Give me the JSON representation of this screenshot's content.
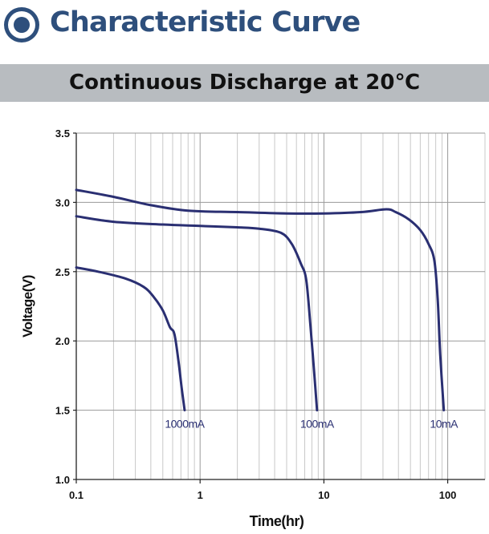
{
  "header": {
    "title": "Characteristic Curve",
    "subtitle": "Continuous Discharge at 20℃",
    "icon": "target-icon",
    "accent_color": "#2e4f7c",
    "bar_color": "#b8bcc0"
  },
  "chart_data": {
    "type": "line",
    "title": "Continuous Discharge at 20℃",
    "xlabel": "Time(hr)",
    "ylabel": "Voltage(V)",
    "x_scale": "log",
    "xlim": [
      0.1,
      200
    ],
    "ylim": [
      1.0,
      3.5
    ],
    "x_ticks": [
      0.1,
      1,
      10,
      100
    ],
    "x_tick_labels": [
      "0.1",
      "1",
      "10",
      "100"
    ],
    "y_ticks": [
      1.0,
      1.5,
      2.0,
      2.5,
      3.0,
      3.5
    ],
    "y_tick_labels": [
      "1.0",
      "1.5",
      "2.0",
      "2.5",
      "3.0",
      "3.5"
    ],
    "grid": true,
    "line_color": "#2a2f72",
    "series": [
      {
        "name": "1000mA",
        "label": "1000mA",
        "points": [
          [
            0.1,
            2.53
          ],
          [
            0.15,
            2.5
          ],
          [
            0.25,
            2.45
          ],
          [
            0.35,
            2.39
          ],
          [
            0.42,
            2.32
          ],
          [
            0.5,
            2.22
          ],
          [
            0.57,
            2.1
          ],
          [
            0.62,
            2.05
          ],
          [
            0.67,
            1.85
          ],
          [
            0.71,
            1.66
          ],
          [
            0.75,
            1.5
          ]
        ]
      },
      {
        "name": "100mA",
        "label": "100mA",
        "points": [
          [
            0.1,
            2.9
          ],
          [
            0.2,
            2.86
          ],
          [
            0.5,
            2.84
          ],
          [
            1,
            2.83
          ],
          [
            2,
            2.82
          ],
          [
            3,
            2.81
          ],
          [
            4.5,
            2.78
          ],
          [
            5.5,
            2.7
          ],
          [
            6.5,
            2.56
          ],
          [
            7.2,
            2.44
          ],
          [
            7.8,
            2.1
          ],
          [
            8.3,
            1.8
          ],
          [
            8.8,
            1.5
          ]
        ]
      },
      {
        "name": "10mA",
        "label": "10mA",
        "points": [
          [
            0.1,
            3.09
          ],
          [
            0.2,
            3.04
          ],
          [
            0.4,
            2.98
          ],
          [
            0.8,
            2.94
          ],
          [
            2,
            2.93
          ],
          [
            5,
            2.92
          ],
          [
            10,
            2.92
          ],
          [
            20,
            2.93
          ],
          [
            32,
            2.95
          ],
          [
            38,
            2.93
          ],
          [
            48,
            2.88
          ],
          [
            60,
            2.8
          ],
          [
            70,
            2.7
          ],
          [
            78,
            2.58
          ],
          [
            83,
            2.3
          ],
          [
            87,
            1.9
          ],
          [
            93,
            1.5
          ]
        ]
      }
    ]
  }
}
